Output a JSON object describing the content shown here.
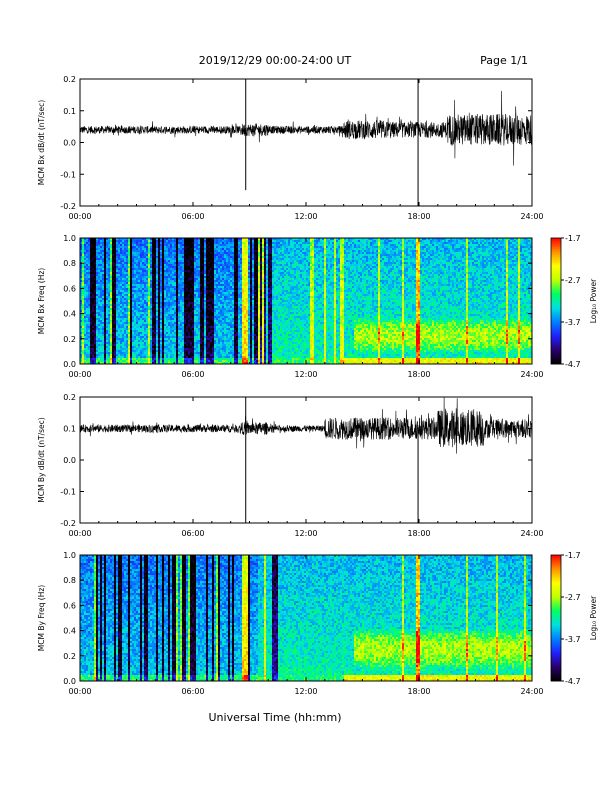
{
  "header": {
    "date_range": "2019/12/29  00:00-24:00 UT",
    "page": "Page 1/1"
  },
  "x_axis_title": "Universal Time (hh:mm)",
  "colorbar": {
    "label": "Log₁₀ Power",
    "ticks": [
      "-1.7",
      "-2.7",
      "-3.7",
      "-4.7"
    ],
    "range": [
      -4.7,
      -1.7
    ],
    "colormap": [
      "#000000",
      "#2b006b",
      "#2020ff",
      "#0080ff",
      "#00e0e0",
      "#00ff60",
      "#c0ff00",
      "#ffff00",
      "#ff9000",
      "#ff0000"
    ]
  },
  "chart_data": [
    {
      "type": "line",
      "ylabel": "MCM Bx dB/dt (nT/sec)",
      "xlim_hours": [
        0,
        24
      ],
      "ylim": [
        -0.2,
        0.2
      ],
      "xticks": [
        "00:00",
        "06:00",
        "12:00",
        "18:00",
        "24:00"
      ],
      "yticks": [
        "0.2",
        "0.1",
        "0.0",
        "-0.1",
        "-0.2"
      ],
      "baseline": 0.04,
      "noise_envelope": [
        {
          "hours": [
            0,
            8.5
          ],
          "amp": 0.012
        },
        {
          "hours": [
            8.5,
            10
          ],
          "amp": 0.02
        },
        {
          "hours": [
            10,
            14
          ],
          "amp": 0.012
        },
        {
          "hours": [
            14,
            16.5
          ],
          "amp": 0.03
        },
        {
          "hours": [
            16.5,
            19.5
          ],
          "amp": 0.025
        },
        {
          "hours": [
            19.5,
            24
          ],
          "amp": 0.05
        }
      ],
      "spikes": [
        {
          "hour": 8.8,
          "min": -0.15,
          "max": 0.2
        },
        {
          "hour": 17.95,
          "min": -0.2,
          "max": 0.2
        }
      ]
    },
    {
      "type": "heatmap",
      "ylabel": "MCM Bx Freq (Hz)",
      "xlim_hours": [
        0,
        24
      ],
      "ylim": [
        0.0,
        1.0
      ],
      "xticks": [
        "00:00",
        "06:00",
        "12:00",
        "18:00",
        "24:00"
      ],
      "yticks": [
        "1.0",
        "0.8",
        "0.6",
        "0.4",
        "0.2",
        "0.0"
      ],
      "zrange": [
        -4.7,
        -1.7
      ],
      "enhanced_region": {
        "hours": [
          14.5,
          24
        ],
        "freq": [
          0.05,
          0.4
        ],
        "peak_log_power": -2.7
      }
    },
    {
      "type": "line",
      "ylabel": "MCM By dB/dt (nT/sec)",
      "xlim_hours": [
        0,
        24
      ],
      "ylim": [
        -0.2,
        0.2
      ],
      "xticks": [
        "00:00",
        "06:00",
        "12:00",
        "18:00",
        "24:00"
      ],
      "yticks": [
        "0.2",
        "0.1",
        "0.0",
        "-0.1",
        "-0.2"
      ],
      "baseline": 0.1,
      "noise_envelope": [
        {
          "hours": [
            0,
            8.5
          ],
          "amp": 0.012
        },
        {
          "hours": [
            8.5,
            10
          ],
          "amp": 0.02
        },
        {
          "hours": [
            10,
            13
          ],
          "amp": 0.01
        },
        {
          "hours": [
            13,
            19
          ],
          "amp": 0.035
        },
        {
          "hours": [
            19,
            21.5
          ],
          "amp": 0.06
        },
        {
          "hours": [
            21.5,
            24
          ],
          "amp": 0.03
        }
      ],
      "spikes": [
        {
          "hour": 8.8,
          "min": -0.2,
          "max": 0.2
        },
        {
          "hour": 17.95,
          "min": -0.2,
          "max": 0.09
        }
      ]
    },
    {
      "type": "heatmap",
      "ylabel": "MCM By Freq (Hz)",
      "xlim_hours": [
        0,
        24
      ],
      "ylim": [
        0.0,
        1.0
      ],
      "xticks": [
        "00:00",
        "06:00",
        "12:00",
        "18:00",
        "24:00"
      ],
      "yticks": [
        "1.0",
        "0.8",
        "0.6",
        "0.4",
        "0.2",
        "0.0"
      ],
      "zrange": [
        -4.7,
        -1.7
      ],
      "enhanced_region": {
        "hours": [
          14.5,
          24
        ],
        "freq": [
          0.05,
          0.45
        ],
        "peak_log_power": -2.7
      }
    }
  ]
}
